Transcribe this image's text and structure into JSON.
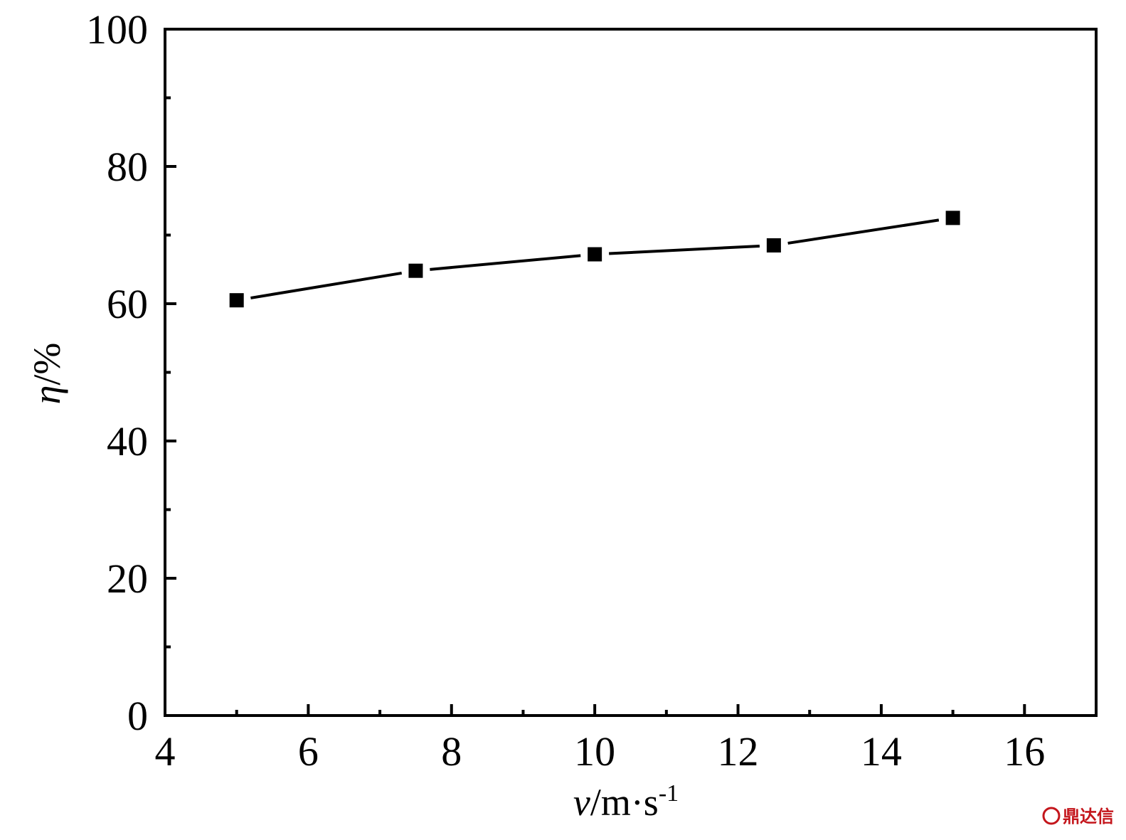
{
  "chart_data": {
    "type": "line",
    "x_label": {
      "var": "v",
      "rest": "/m·s",
      "sup": "-1"
    },
    "y_label": {
      "var": "η",
      "rest": "/%"
    },
    "xlim": [
      4,
      17
    ],
    "ylim": [
      0,
      100
    ],
    "x_ticks": [
      4,
      6,
      8,
      10,
      12,
      14,
      16
    ],
    "y_ticks": [
      0,
      20,
      40,
      60,
      80,
      100
    ],
    "x_minor_ticks": [
      5,
      7,
      9,
      11,
      13,
      15
    ],
    "y_minor_ticks": [
      10,
      30,
      50,
      70,
      90
    ],
    "series": [
      {
        "marker": "square",
        "color": "#000000",
        "x": [
          5,
          7.5,
          10,
          12.5,
          15
        ],
        "y": [
          60.5,
          64.8,
          67.2,
          68.5,
          72.5
        ]
      }
    ],
    "grid": false,
    "legend": "none"
  },
  "watermark": {
    "text": "鼎达信",
    "color": "#c4161c"
  }
}
